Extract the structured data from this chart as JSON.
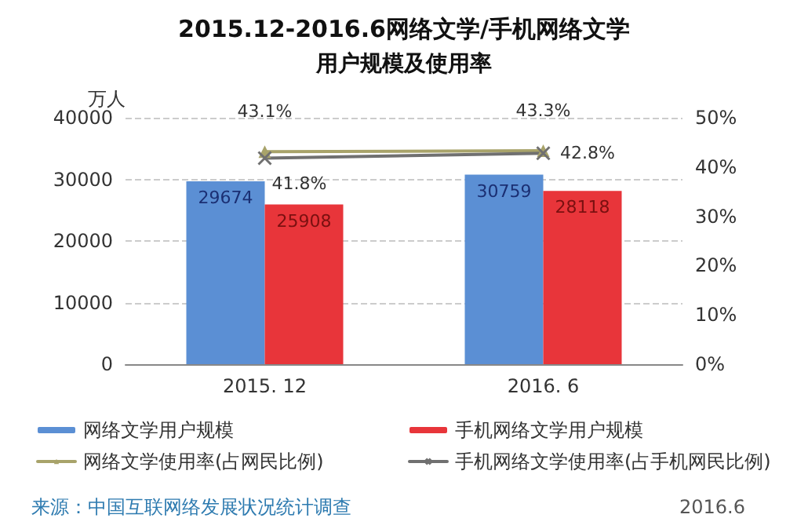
{
  "chart_data": {
    "type": "bar",
    "title": "2015.12-2016.6网络文学/手机网络文学",
    "subtitle": "用户规模及使用率",
    "ylabel": "万人",
    "categories": [
      "2015. 12",
      "2016. 6"
    ],
    "series": [
      {
        "name": "网络文学用户规模",
        "color": "#5b8fd4",
        "values": [
          29674,
          30759
        ],
        "value_labels": [
          "29674",
          "30759"
        ]
      },
      {
        "name": "手机网络文学用户规模",
        "color": "#e8353a",
        "values": [
          25908,
          28118
        ],
        "value_labels": [
          "25908",
          "28118"
        ]
      },
      {
        "name": "网络文学使用率(占网民比例)",
        "type": "line",
        "axis": "y2",
        "marker": "triangle",
        "color": "#a8a36a",
        "values": [
          43.1,
          43.3
        ],
        "value_labels": [
          "43.1%",
          "43.3%"
        ]
      },
      {
        "name": "手机网络文学使用率(占手机网民比例)",
        "type": "line",
        "axis": "y2",
        "marker": "cross",
        "color": "#707070",
        "values": [
          41.8,
          42.8
        ],
        "value_labels": [
          "41.8%",
          "42.8%"
        ]
      }
    ],
    "ylim": [
      0,
      40000
    ],
    "yticks": [
      0,
      10000,
      20000,
      30000,
      40000
    ],
    "y2lim": [
      0,
      50
    ],
    "y2ticks": [
      {
        "value": 0,
        "label": "0%"
      },
      {
        "value": 10,
        "label": "10%"
      },
      {
        "value": 20,
        "label": "20%"
      },
      {
        "value": 30,
        "label": "30%"
      },
      {
        "value": 40,
        "label": "40%"
      },
      {
        "value": 50,
        "label": "50%"
      }
    ],
    "grid": "y",
    "legend": "bottom",
    "annotations": [
      "来源：中国互联网络发展状况统计调查",
      "2016.6"
    ]
  }
}
